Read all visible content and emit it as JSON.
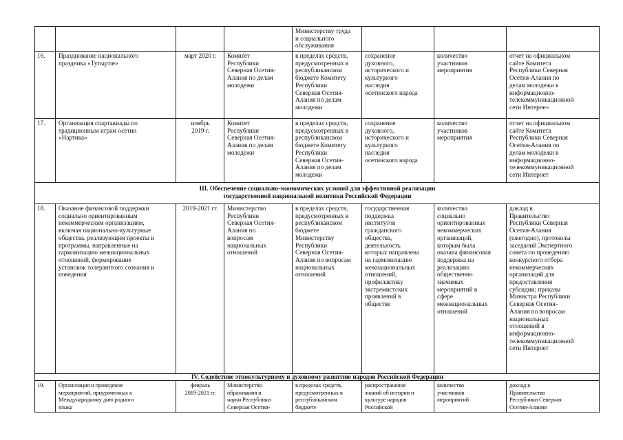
{
  "rows": [
    {
      "type": "row",
      "cells": [
        "",
        "",
        "",
        "",
        "Министерству труда\nи социального\nобслуживания",
        "",
        "",
        ""
      ]
    },
    {
      "type": "row",
      "cells": [
        "16.",
        "Празднование национального\nпраздника «Тутыртœ»",
        "март 2020 г.",
        "Комитет\nРеспублики\nСеверная Осетия-\nАлания по делам\nмолодежи",
        "в пределах средств,\nпредусмотренных в\nреспубликанском\nбюджете Комитету\nРеспублики\nСеверная Осетия-\nАлания по делам\nмолодежи",
        "сохранение\nдуховного,\nисторического и\nкультурного\nнаследия\nосетинского народа",
        "количество\nучастников\nмероприятия",
        "отчет на официальном\nсайте Комитета\nРеспублики Северная\nОсетия-Алания по\nделам молодежи в\nинформационно-\nтелекоммуникационной\nсети Интерне»"
      ]
    },
    {
      "type": "row",
      "cells": [
        "17.",
        "Организация спартакиады по\nтрадиционным играм осетин\n«Нартика»",
        "ноябрь\n2019 г.",
        "Комитет\nРеспублики\nСеверная Осетия-\nАлания по делам\nмолодежи",
        "в пределах средств,\nпредусмотренных в\nреспубликанском\nбюджете Комитету\nРеспублики\nСеверная Осетия-\nАлания по делам\nмолодежи",
        "сохранение\nдуховного,\nисторического и\nкультурного\nнаследия\nосетинского народа",
        "количество\nучастников\nмероприятия",
        "отчет на официальном\nсайте Комитета\nРеспублики Северная\nОсетия-Алания по\nделам молодежи в\nинформационно-\nтелекоммуникационной\nсети Интернет"
      ]
    },
    {
      "type": "section",
      "text": "III. Обеспечение социально-экономических условий для эффективной реализации\nгосударственной национальной политики Российской Федерации"
    },
    {
      "type": "row",
      "cells": [
        "18.",
        "Оказание финансовой поддержки\nсоциально ориентированным\nнекоммерческим организациям,\nвключая национально-культурные\nобщества, реализующим проекты и\nпрограммы, направленные на\nгармонизацию межнациональных\nотношений, формирование\nустановок толерантного сознания и\nповедения",
        "2019-2021 гг.",
        "Министерство\nРеспублики\nСеверная Осетия-\nАлания по\nвопросам\nнациональных\nотношений",
        "в пределах средств,\nпредусмотренных в\nреспубликанском\nбюджете\nМинистерству\nРеспублики\nСеверная Осетия-\nАлания по вопросам\nнациональных\nотношений",
        "государственная\nподдержка\nинститутов\nгражданского\nобщества,\nдеятельность\nкоторых направлена\nна гармонизацию\nмежнациональных\nотношений,\nпрофилактику\nэкстремистских\nпроявлений в\nобществе",
        "количество\nсоциально\nориентированных\nнекоммерческих\nорганизаций,\nкоторым была\nоказана финансовая\nподдержка на\nреализацию\nобщественно\nзначимых\nмероприятий в\nсфере\nмежнациональных\nотношений",
        "доклад в\nПравительство\nРеспублики Северная\nОсетия-Алания\n(ежегодно), протоколы\nзаседаний Экспертного\nсовета по проведению\nконкурсного отбора\nнекоммерческих\nорганизаций для\nпредоставления\nсубсидии; приказы\nМинистра Республики\nСеверная Осетия-\nАлания по вопросам\nнациональных\nотношений в\nинформационно-\nтелекоммуникационной\nсети Интернет"
      ]
    },
    {
      "type": "section",
      "text": "IV. Содействие этнокультурному и духовному развитию народов Российской Федерации"
    },
    {
      "type": "row",
      "cells": [
        "19.",
        "Организация и проведение\nмероприятий, приуроченных к\nМеждународному дню родного\nязыка",
        "февраль\n2019-2021 гг.",
        "Министерство\nобразования и\nнауки Республики\nСеверная Осетия-",
        "в пределах средств,\nпредусмотренных в\nреспубликанском\nбюджете",
        "распространение\nзнаний об истории и\nкультуре народов\nРоссийской",
        "количество\nучастников\nмероприятий",
        "доклад в\nПравительство\nРеспублики Северная\nОсетия-Алания"
      ]
    }
  ]
}
